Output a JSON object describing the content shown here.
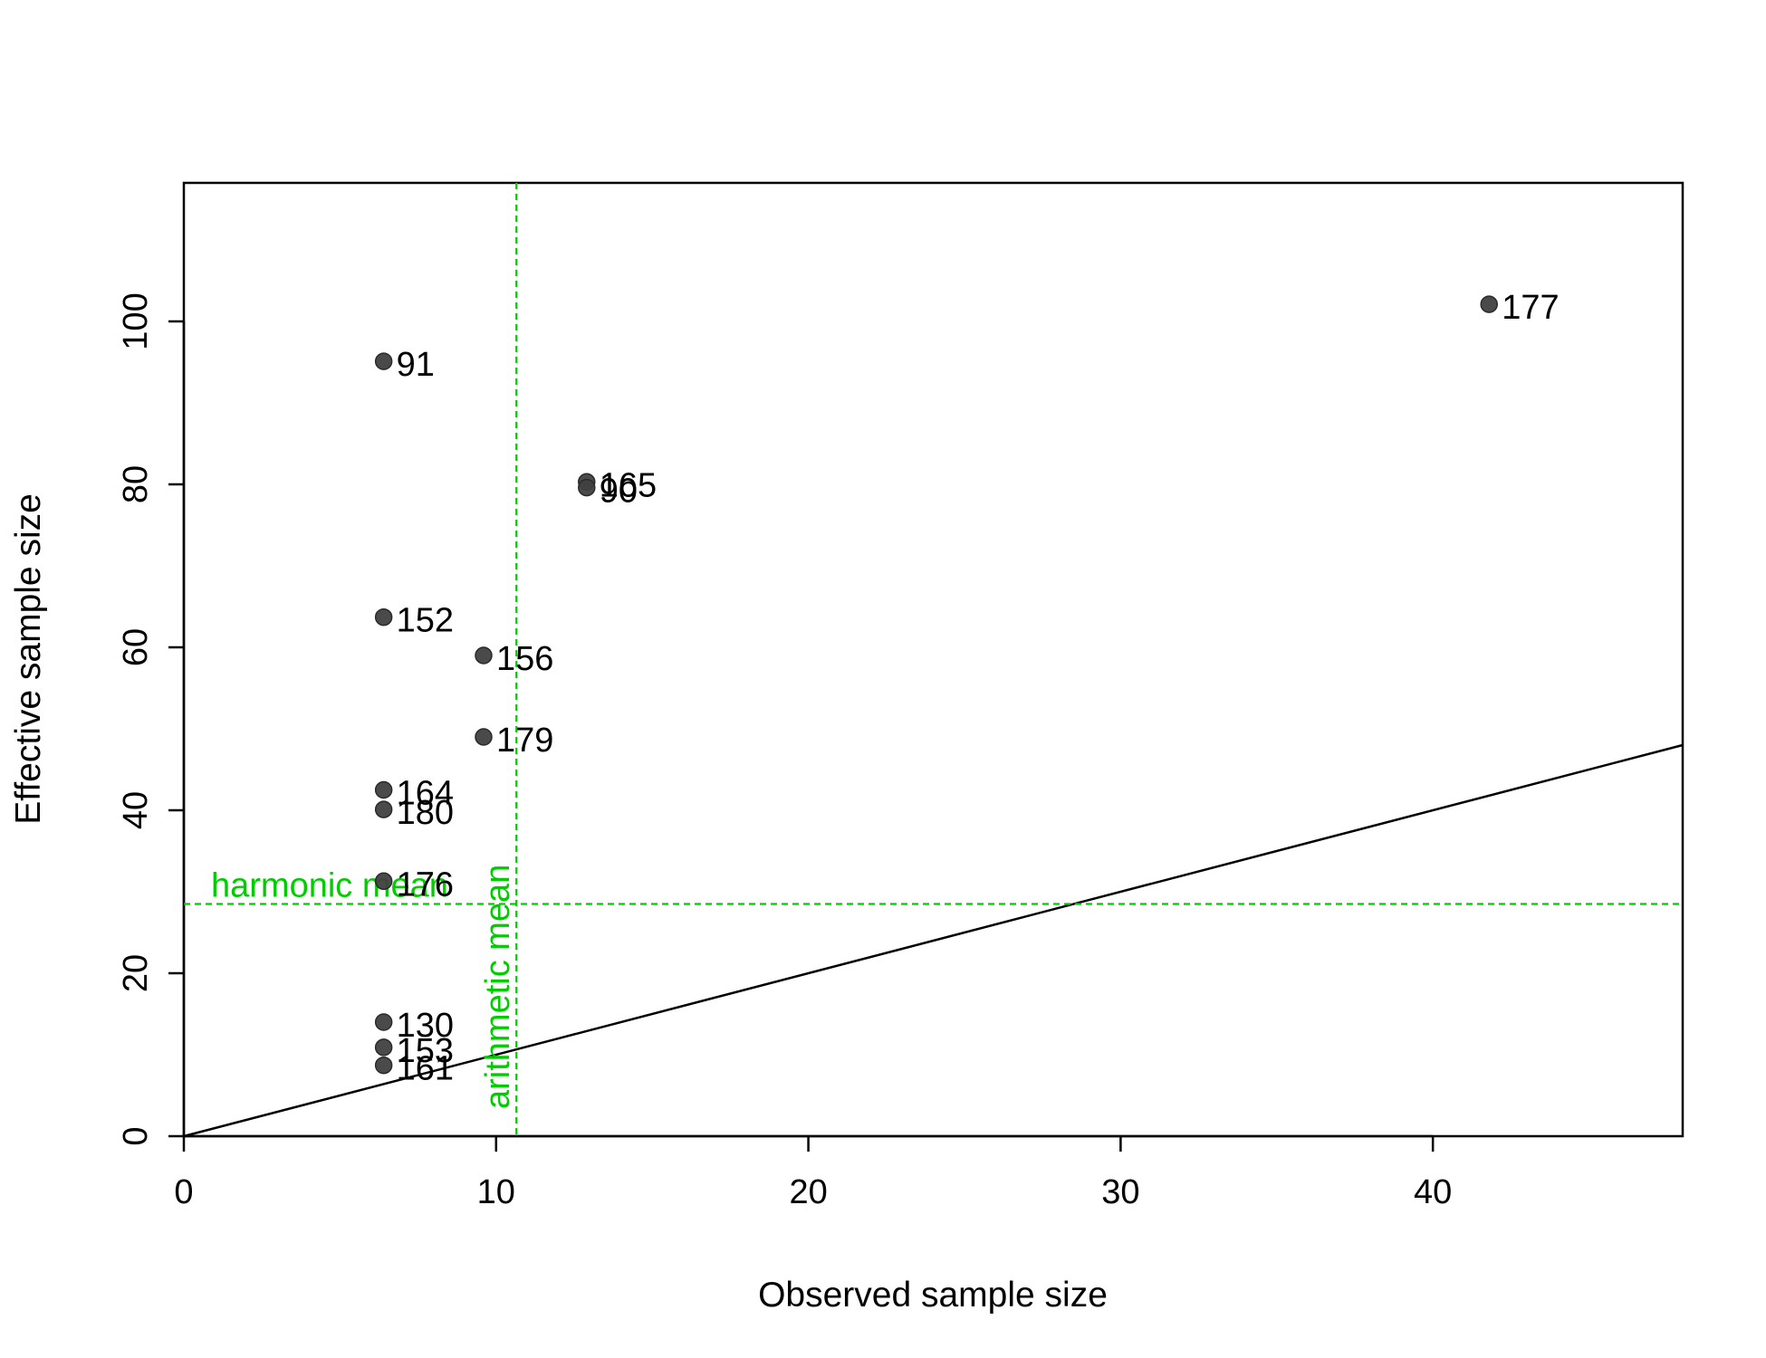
{
  "chart_data": {
    "type": "scatter",
    "title": "",
    "xlabel": "Observed sample size",
    "ylabel": "Effective sample size",
    "xlim": [
      0,
      48
    ],
    "ylim": [
      0,
      117
    ],
    "x_ticks": [
      0,
      10,
      20,
      30,
      40
    ],
    "y_ticks": [
      0,
      20,
      40,
      60,
      80,
      100
    ],
    "grid": false,
    "legend": "none",
    "point_color": "#404040",
    "points": [
      {
        "label": "91",
        "x": 6.4,
        "y": 95.1
      },
      {
        "label": "177",
        "x": 41.8,
        "y": 102.1
      },
      {
        "label": "165",
        "x": 12.9,
        "y": 80.3
      },
      {
        "label": "90",
        "x": 12.9,
        "y": 79.6
      },
      {
        "label": "152",
        "x": 6.4,
        "y": 63.7
      },
      {
        "label": "156",
        "x": 9.6,
        "y": 59.0
      },
      {
        "label": "179",
        "x": 9.6,
        "y": 49.0
      },
      {
        "label": "164",
        "x": 6.4,
        "y": 42.5
      },
      {
        "label": "180",
        "x": 6.4,
        "y": 40.1
      },
      {
        "label": "176",
        "x": 6.4,
        "y": 31.3
      },
      {
        "label": "130",
        "x": 6.4,
        "y": 14.0
      },
      {
        "label": "153",
        "x": 6.4,
        "y": 10.9
      },
      {
        "label": "161",
        "x": 6.4,
        "y": 8.7
      }
    ],
    "reference_line": {
      "intercept": 0,
      "slope": 1,
      "color": "#000000"
    },
    "harmonic_mean": {
      "label": "harmonic mean",
      "value": 28.5,
      "color": "#00cd00"
    },
    "arithmetic_mean": {
      "label": "arithmetic mean",
      "value": 10.65,
      "color": "#00cd00"
    }
  }
}
